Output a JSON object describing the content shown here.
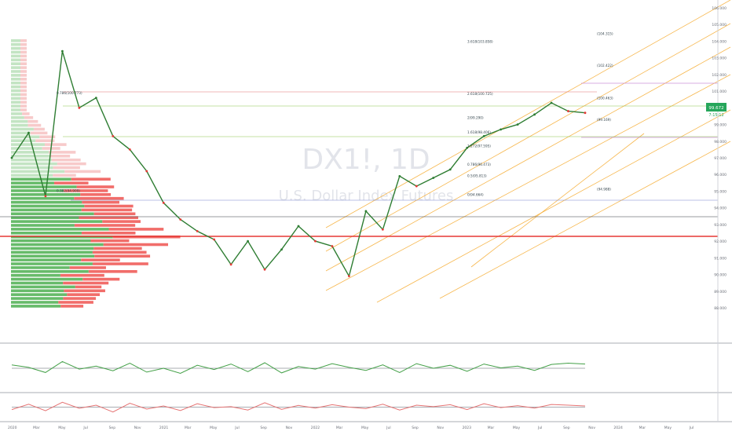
{
  "chart_data": {
    "type": "line",
    "watermark": {
      "symbol": "DX1!, 1D",
      "name": "U.S. Dollar Index Futures"
    },
    "price_axis": {
      "ticks": [
        "106.000",
        "105.000",
        "104.000",
        "103.000",
        "102.000",
        "101.000",
        "100.000",
        "99.000",
        "98.000",
        "97.000",
        "96.000",
        "95.000",
        "94.000",
        "93.000",
        "92.000",
        "91.000",
        "90.000",
        "89.000",
        "88.000"
      ]
    },
    "time_axis": {
      "ticks": [
        "2020",
        "Mar",
        "May",
        "Jul",
        "Sep",
        "Nov",
        "2021",
        "Mar",
        "May",
        "Jul",
        "Sep",
        "Nov",
        "2022",
        "Mar",
        "May",
        "Jul",
        "Sep",
        "Nov",
        "2023",
        "Mar",
        "May",
        "Jul",
        "Sep",
        "Nov",
        "2024",
        "Mar",
        "May",
        "Jul"
      ]
    },
    "price_badges": {
      "last": "99.672",
      "sub": "7:15:12"
    },
    "fib_labels": [
      {
        "text": "0.786(100.773)",
        "price": 100.77
      },
      {
        "text": "0.382(94.909)",
        "price": 94.91
      },
      {
        "text": "3.618(103.858)",
        "price": 103.86
      },
      {
        "text": "2.618(100.725)",
        "price": 100.72
      },
      {
        "text": "2(99.290)",
        "price": 99.29
      },
      {
        "text": "1.618(98.406)",
        "price": 98.41
      },
      {
        "text": "1.272(97.595)",
        "price": 97.6
      },
      {
        "text": "0.786(96.473)",
        "price": 96.47
      },
      {
        "text": "0.5(95.813)",
        "price": 95.81
      },
      {
        "text": "0(94.664)",
        "price": 94.66
      },
      {
        "text": "(94.988)",
        "price": 94.99
      },
      {
        "text": "(104.315)",
        "price": 104.32
      },
      {
        "text": "(102.422)",
        "price": 102.42
      },
      {
        "text": "(100.463)",
        "price": 100.46
      },
      {
        "text": "(99.169)",
        "price": 99.17
      }
    ],
    "price_series": {
      "x": [
        "2020-01",
        "2020-02",
        "2020-03a",
        "2020-03b",
        "2020-04",
        "2020-05",
        "2020-06",
        "2020-07",
        "2020-08",
        "2020-09",
        "2020-10",
        "2020-11",
        "2020-12",
        "2021-01",
        "2021-03",
        "2021-05",
        "2021-06",
        "2021-08",
        "2021-10",
        "2021-12",
        "2022-02",
        "2022-04",
        "2022-06",
        "2022-08",
        "2022-10",
        "2022-12",
        "2023-02",
        "2023-04",
        "2023-06",
        "2023-08",
        "2023-10",
        "2023-12",
        "2024-02",
        "2024-04",
        "2024-06"
      ],
      "y": [
        97.0,
        98.5,
        94.7,
        103.4,
        100.0,
        100.6,
        98.3,
        97.5,
        96.2,
        94.3,
        93.3,
        92.6,
        92.1,
        90.6,
        92.0,
        90.3,
        91.5,
        92.9,
        92.0,
        91.7,
        89.9,
        93.8,
        92.7,
        95.9,
        95.3,
        95.8,
        96.3,
        97.6,
        98.3,
        98.7,
        99.0,
        99.6,
        100.3,
        99.8,
        99.7
      ]
    },
    "oscillator1": {
      "values": [
        58,
        52,
        40,
        66,
        48,
        55,
        44,
        62,
        41,
        50,
        38,
        57,
        47,
        60,
        42,
        63,
        39,
        54,
        48,
        61,
        52,
        45,
        58,
        40,
        61,
        50,
        57,
        43,
        60,
        51,
        55,
        45,
        59,
        62,
        60
      ]
    },
    "oscillator2": {
      "values": [
        40,
        62,
        35,
        70,
        45,
        58,
        30,
        66,
        42,
        55,
        36,
        64,
        48,
        52,
        38,
        68,
        41,
        57,
        46,
        60,
        50,
        44,
        62,
        38,
        58,
        52,
        60,
        40,
        64,
        48,
        56,
        46,
        61,
        58,
        55
      ]
    }
  }
}
